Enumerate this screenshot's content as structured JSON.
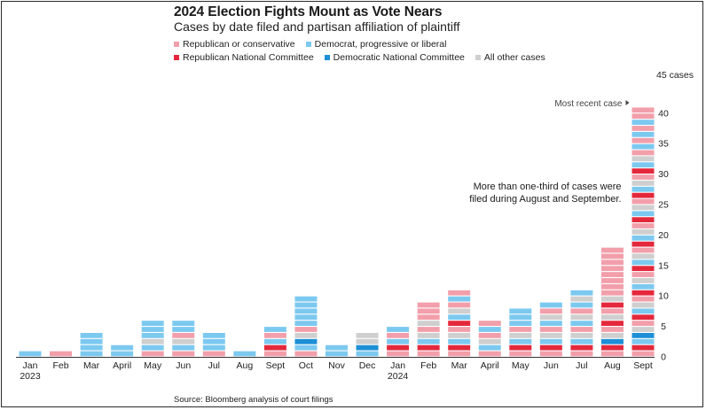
{
  "title": "2024 Election Fights Mount as Vote Nears",
  "subtitle": "Cases by date filed and partisan affiliation of plaintiff",
  "source": "Source: Bloomberg analysis of court filings",
  "colors": {
    "rep": "#f29fab",
    "dem": "#7cc9f0",
    "rnc": "#e4283c",
    "dnc": "#1c8fd6",
    "other": "#cfcfcf"
  },
  "chart_data": {
    "type": "bar",
    "stacked": true,
    "title": "2024 Election Fights Mount as Vote Nears",
    "subtitle": "Cases by date filed and partisan affiliation of plaintiff",
    "y_unit_label": "45 cases",
    "ylim": [
      0,
      45
    ],
    "yticks": [
      0,
      5,
      10,
      15,
      20,
      25,
      30,
      35,
      40
    ],
    "grid": false,
    "legend_position": "top-left",
    "categories": [
      "Jan",
      "Feb",
      "Mar",
      "April",
      "May",
      "Jun",
      "Jul",
      "Aug",
      "Sept",
      "Oct",
      "Nov",
      "Dec",
      "Jan",
      "Feb",
      "Mar",
      "April",
      "May",
      "Jun",
      "Jul",
      "Aug",
      "Sept"
    ],
    "year_labels": [
      {
        "index": 0,
        "text": "2023"
      },
      {
        "index": 12,
        "text": "2024"
      }
    ],
    "series": [
      {
        "key": "rep",
        "name": "Republican or conservative",
        "values": [
          0,
          1,
          0,
          0,
          1,
          2,
          1,
          0,
          2,
          2,
          0,
          0,
          2,
          5,
          4,
          3,
          2,
          3,
          3,
          11,
          13
        ]
      },
      {
        "key": "dem",
        "name": "Democrat, progressive or liberal",
        "values": [
          1,
          0,
          4,
          2,
          4,
          3,
          3,
          1,
          2,
          6,
          2,
          1,
          2,
          1,
          3,
          2,
          4,
          3,
          4,
          0,
          11
        ]
      },
      {
        "key": "rnc",
        "name": "Republican National Committee",
        "values": [
          0,
          0,
          0,
          0,
          0,
          0,
          0,
          0,
          1,
          0,
          0,
          0,
          1,
          1,
          2,
          0,
          1,
          1,
          1,
          3,
          8
        ]
      },
      {
        "key": "dnc",
        "name": "Democratic National Committee",
        "values": [
          0,
          0,
          0,
          0,
          0,
          0,
          0,
          0,
          0,
          1,
          0,
          1,
          0,
          0,
          0,
          0,
          0,
          0,
          0,
          1,
          1
        ]
      },
      {
        "key": "other",
        "name": "All other cases",
        "values": [
          0,
          0,
          0,
          0,
          1,
          1,
          0,
          0,
          0,
          1,
          0,
          2,
          0,
          2,
          2,
          1,
          1,
          2,
          3,
          3,
          8
        ]
      }
    ],
    "annotations": [
      {
        "text": "Most recent case",
        "category_index": 20
      },
      {
        "lines": [
          "More than one-third of cases were",
          "filed during August and September."
        ],
        "category_index": 20
      }
    ]
  }
}
